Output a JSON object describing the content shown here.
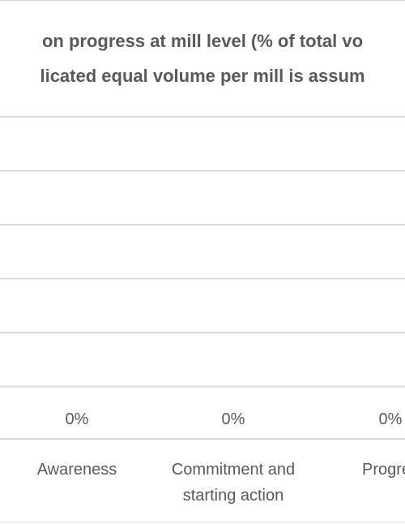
{
  "chart_data": {
    "type": "bar",
    "title_lines": [
      "on progress at mill level (% of total vo",
      "licated equal volume per mill is assum"
    ],
    "categories": [
      [
        "Awareness"
      ],
      [
        "Commitment and",
        "starting action"
      ],
      [
        "Progres"
      ]
    ],
    "values": [
      0,
      0,
      0
    ],
    "data_labels": [
      "0%",
      "0%",
      "0%"
    ],
    "y_gridlines": 6,
    "grid": true,
    "colors": {
      "grid": "#d9d9d9",
      "border": "#d9d9d9",
      "text": "#595959",
      "title": "#595959"
    }
  }
}
